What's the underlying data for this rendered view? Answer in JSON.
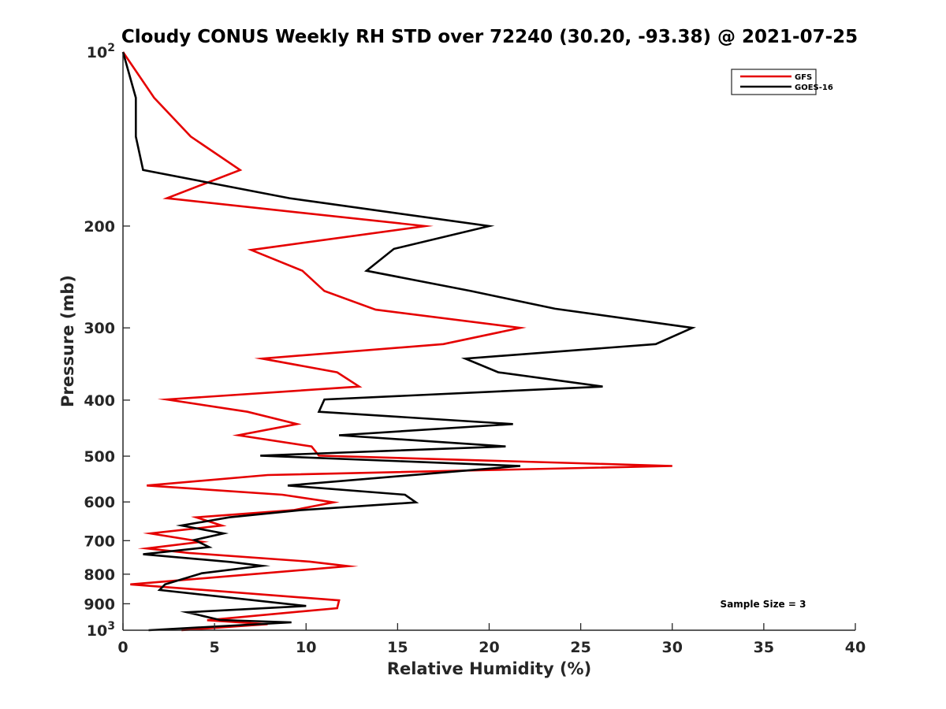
{
  "chart_data": {
    "type": "line",
    "title": "Cloudy CONUS Weekly RH STD over 72240 (30.20, -93.38) @ 2021-07-25",
    "xlabel": "Relative Humidity (%)",
    "ylabel": "Pressure (mb)",
    "xlim": [
      0,
      40
    ],
    "ylim": [
      100,
      1000
    ],
    "yscale": "log",
    "yreversed": true,
    "xticks": [
      0,
      5,
      10,
      15,
      20,
      25,
      30,
      35,
      40
    ],
    "xtick_labels": [
      "0",
      "5",
      "10",
      "15",
      "20",
      "25",
      "30",
      "35",
      "40"
    ],
    "yticks": [
      100,
      200,
      300,
      400,
      500,
      600,
      700,
      800,
      900,
      1000
    ],
    "ytick_labels": [
      {
        "base": "10",
        "exp": "2"
      },
      {
        "base": "200",
        "exp": ""
      },
      {
        "base": "300",
        "exp": ""
      },
      {
        "base": "400",
        "exp": ""
      },
      {
        "base": "500",
        "exp": ""
      },
      {
        "base": "600",
        "exp": ""
      },
      {
        "base": "700",
        "exp": ""
      },
      {
        "base": "800",
        "exp": ""
      },
      {
        "base": "900",
        "exp": ""
      },
      {
        "base": "10",
        "exp": "3"
      }
    ],
    "grid": false,
    "legend_position": "top-right",
    "annotation": "Sample Size = 3",
    "series": [
      {
        "name": "GFS",
        "color": "#e50000",
        "points": [
          [
            0.0,
            100
          ],
          [
            1.7,
            120
          ],
          [
            3.7,
            140
          ],
          [
            6.4,
            160
          ],
          [
            2.4,
            179
          ],
          [
            16.5,
            200
          ],
          [
            7.0,
            220
          ],
          [
            9.8,
            239
          ],
          [
            11.0,
            259
          ],
          [
            13.8,
            279
          ],
          [
            21.7,
            300
          ],
          [
            17.5,
            320
          ],
          [
            7.6,
            339
          ],
          [
            11.7,
            358
          ],
          [
            12.9,
            379
          ],
          [
            2.4,
            399
          ],
          [
            6.8,
            419
          ],
          [
            9.5,
            440
          ],
          [
            6.3,
            460
          ],
          [
            10.3,
            481
          ],
          [
            10.7,
            499
          ],
          [
            30.0,
            520
          ],
          [
            7.9,
            539
          ],
          [
            1.3,
            562
          ],
          [
            8.7,
            583
          ],
          [
            11.5,
            601
          ],
          [
            9.3,
            620
          ],
          [
            4.0,
            638
          ],
          [
            5.4,
            659
          ],
          [
            1.5,
            680
          ],
          [
            4.3,
            703
          ],
          [
            1.3,
            722
          ],
          [
            3.6,
            735
          ],
          [
            10.2,
            761
          ],
          [
            12.3,
            775
          ],
          [
            0.4,
            833
          ],
          [
            11.8,
            888
          ],
          [
            11.7,
            916
          ],
          [
            4.6,
            961
          ],
          [
            7.9,
            976
          ],
          [
            3.2,
            1000
          ]
        ]
      },
      {
        "name": "GOES-16",
        "color": "#000000",
        "points": [
          [
            0.0,
            100
          ],
          [
            0.7,
            120
          ],
          [
            0.7,
            140
          ],
          [
            1.1,
            160
          ],
          [
            9.1,
            179
          ],
          [
            20.0,
            200
          ],
          [
            14.8,
            219
          ],
          [
            13.3,
            239
          ],
          [
            19.0,
            259
          ],
          [
            23.6,
            278
          ],
          [
            31.1,
            300
          ],
          [
            29.1,
            320
          ],
          [
            18.7,
            339
          ],
          [
            20.5,
            358
          ],
          [
            26.2,
            379
          ],
          [
            11.0,
            399
          ],
          [
            10.7,
            419
          ],
          [
            21.3,
            440
          ],
          [
            11.8,
            460
          ],
          [
            20.9,
            481
          ],
          [
            7.5,
            499
          ],
          [
            21.7,
            520
          ],
          [
            9.0,
            562
          ],
          [
            15.4,
            583
          ],
          [
            16.0,
            601
          ],
          [
            9.7,
            620
          ],
          [
            5.8,
            638
          ],
          [
            3.2,
            659
          ],
          [
            5.5,
            680
          ],
          [
            3.9,
            698
          ],
          [
            4.7,
            718
          ],
          [
            1.1,
            739
          ],
          [
            5.9,
            762
          ],
          [
            7.6,
            774
          ],
          [
            4.3,
            797
          ],
          [
            2.3,
            833
          ],
          [
            2.0,
            852
          ],
          [
            10.0,
            908
          ],
          [
            3.5,
            931
          ],
          [
            5.3,
            960
          ],
          [
            9.2,
            969
          ],
          [
            1.4,
            1000
          ]
        ]
      }
    ]
  }
}
